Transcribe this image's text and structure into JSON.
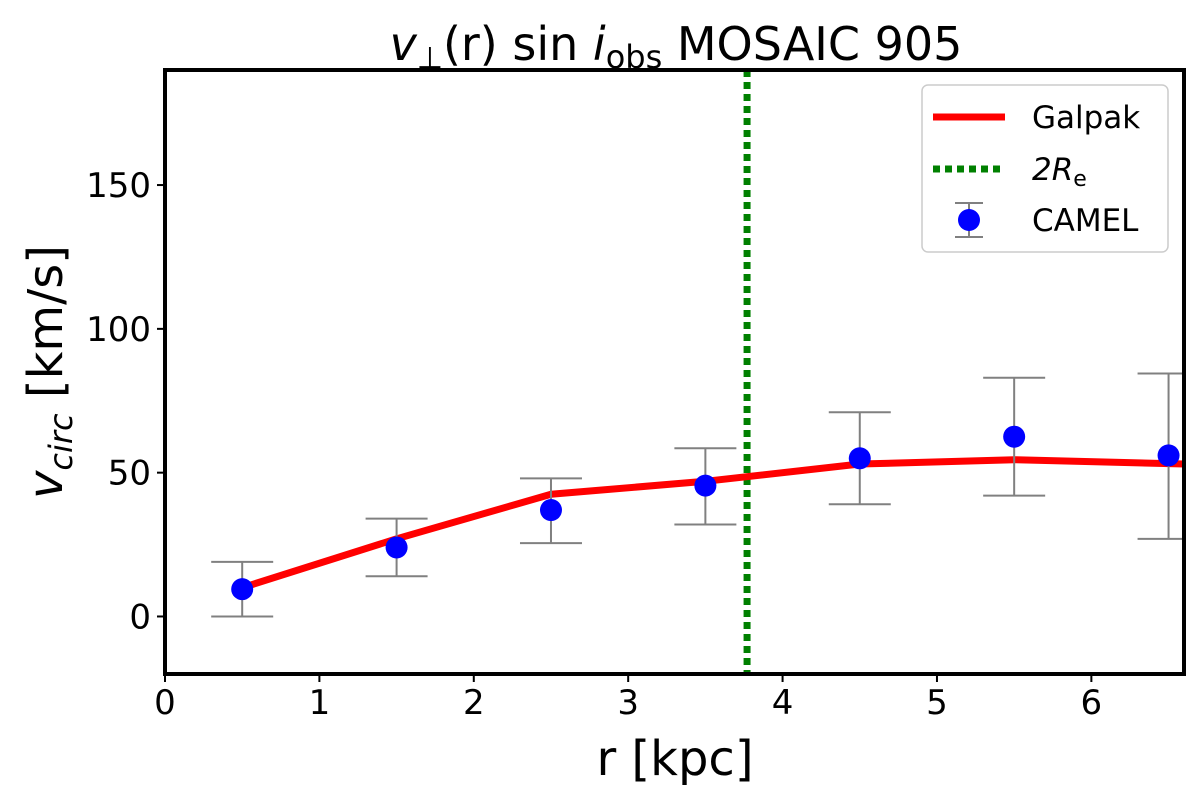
{
  "chart_data": {
    "type": "line",
    "title": {
      "v": "v",
      "perp": "⊥",
      "mid": "(r) sin ",
      "i": "i",
      "sub": "obs",
      "rest": " MOSAIC 905"
    },
    "xlabel": "r [kpc]",
    "ylabel": {
      "main": "v",
      "sub": "circ",
      "unit": " [km/s]"
    },
    "xlim": [
      0,
      6.6
    ],
    "ylim": [
      -20,
      190
    ],
    "xticks": [
      0,
      1,
      2,
      3,
      4,
      5,
      6
    ],
    "yticks": [
      0,
      50,
      100,
      150
    ],
    "grid": false,
    "legend_position": "top-right",
    "series": [
      {
        "name": "Galpak",
        "type": "line",
        "color": "#ff0000",
        "x": [
          0.5,
          1.5,
          2.5,
          3.5,
          4.5,
          5.5,
          6.6
        ],
        "y": [
          10,
          27,
          42.5,
          47,
          53,
          54.5,
          53
        ]
      },
      {
        "name": "CAMEL",
        "type": "errorbar",
        "color": "#0000ff",
        "errcolor": "#808080",
        "x": [
          0.5,
          1.5,
          2.5,
          3.5,
          4.5,
          5.5,
          6.5
        ],
        "y": [
          9.5,
          24,
          37,
          45.5,
          55,
          62.5,
          56
        ],
        "ylow": [
          0,
          14,
          25.5,
          32,
          39,
          42,
          27
        ],
        "yhigh": [
          19,
          34,
          48,
          58.5,
          71,
          83,
          84.5
        ]
      }
    ],
    "vline": {
      "name_main": "2R",
      "name_sub": "e",
      "x": 3.77,
      "color": "#008000",
      "style": "dotted"
    }
  }
}
